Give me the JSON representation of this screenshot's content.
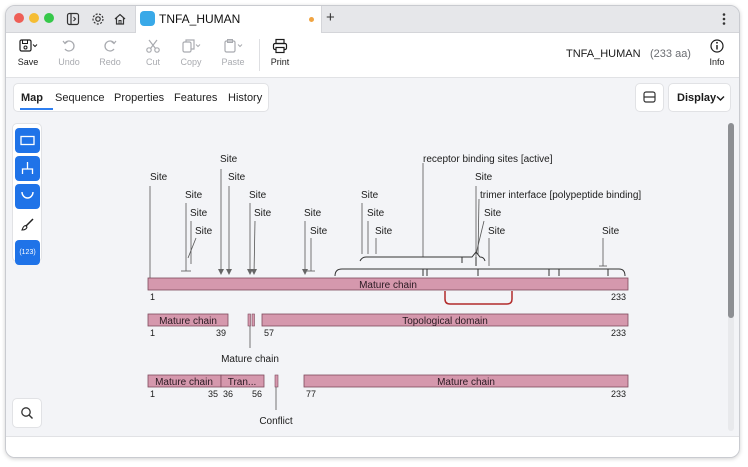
{
  "window": {
    "tab_title": "TNFA_HUMAN",
    "new_tab_label": "+"
  },
  "toolbar": {
    "save": "Save",
    "undo": "Undo",
    "redo": "Redo",
    "cut": "Cut",
    "copy": "Copy",
    "paste": "Paste",
    "print": "Print",
    "info": "Info"
  },
  "document": {
    "title": "TNFA_HUMAN",
    "length": "(233 aa)"
  },
  "view_tabs": [
    "Map",
    "Sequence",
    "Properties",
    "Features",
    "History"
  ],
  "active_view_tab": "Map",
  "display_label": "Display",
  "leftbar": {
    "numbering_label": "(123)"
  },
  "map": {
    "site_labels": [
      "Site",
      "Site",
      "Site",
      "Site",
      "Site",
      "Site",
      "Site",
      "Site",
      "Site",
      "Site",
      "Site",
      "Site",
      "Site",
      "Site",
      "Site",
      "Site",
      "Site"
    ],
    "receptor_label": "receptor binding sites [active]",
    "trimer_label": "trimer interface [polypeptide binding]",
    "row1": {
      "name": "Mature chain",
      "start": "1",
      "end": "233"
    },
    "row2": {
      "seg1": {
        "name": "Mature chain",
        "start": "1",
        "end": "39"
      },
      "seg2": {
        "name": "Topological domain",
        "start": "57",
        "end": "233"
      },
      "callout": "Mature chain"
    },
    "row3": {
      "seg1": {
        "name": "Mature chain",
        "start": "1",
        "end": "35"
      },
      "seg2": {
        "name": "Tran...",
        "start": "36",
        "end": "56"
      },
      "seg3": {
        "name": "Mature chain",
        "start": "77",
        "end": "233"
      },
      "callout": "Conflict"
    }
  },
  "colors": {
    "accent": "#1f73e8",
    "feature_fill": "#d598ad",
    "feature_stroke": "#7d4a5c",
    "red_bracket": "#b22b2b"
  },
  "icons": [
    "close-dot",
    "minimize-dot",
    "maximize-dot",
    "sidebar-toggle-icon",
    "gear-icon",
    "home-icon",
    "save-icon",
    "undo-icon",
    "redo-icon",
    "cut-icon",
    "copy-icon",
    "paste-icon",
    "print-icon",
    "info-icon",
    "more-icon",
    "layout-icon",
    "chevron-down-icon",
    "rectangle-tool-icon",
    "tree-tool-icon",
    "arc-tool-icon",
    "brush-icon",
    "search-icon"
  ]
}
